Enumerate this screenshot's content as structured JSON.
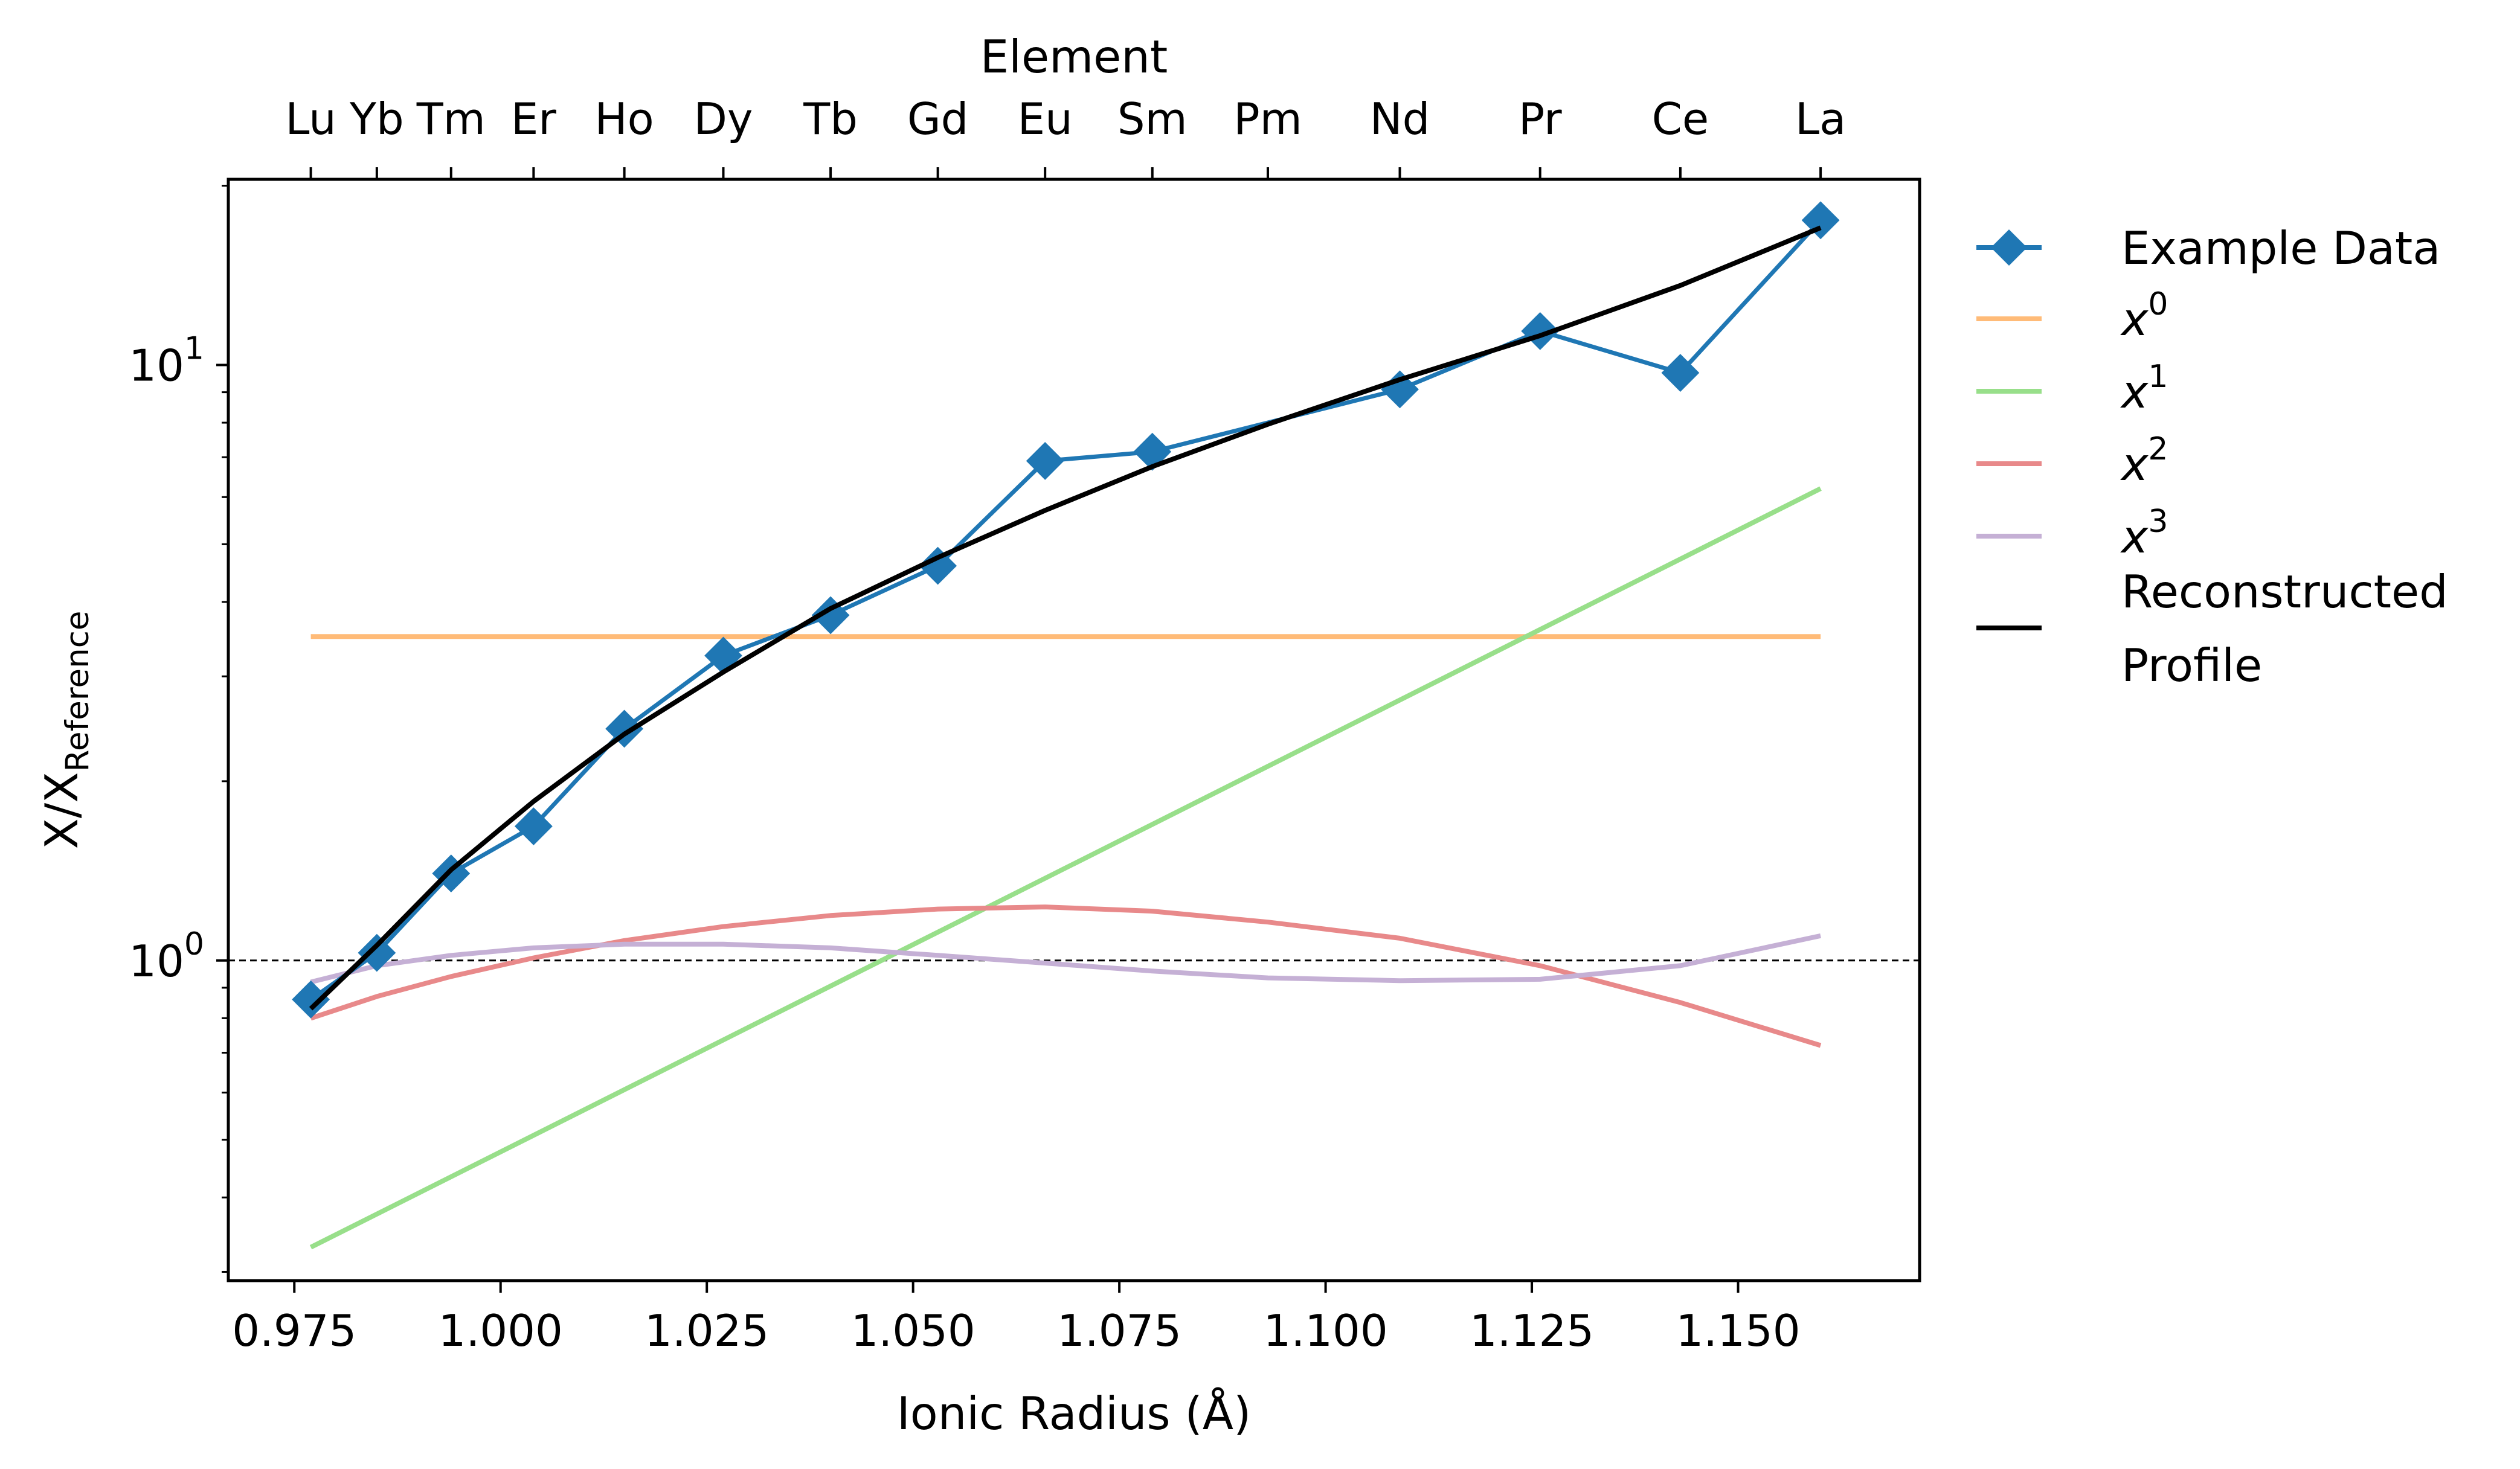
{
  "chart_data": {
    "type": "line",
    "xlabel": "Ionic Radius (Å)",
    "top_xlabel": "Element",
    "ylabel": {
      "main": "X/X",
      "subscript": "Reference"
    },
    "x_scale": "linear",
    "y_scale": "log",
    "xlim": [
      0.967,
      1.172
    ],
    "ylim": [
      0.29,
      20.5
    ],
    "x_ticks": [
      {
        "value": 0.975,
        "label": "0.975"
      },
      {
        "value": 1.0,
        "label": "1.000"
      },
      {
        "value": 1.025,
        "label": "1.025"
      },
      {
        "value": 1.05,
        "label": "1.050"
      },
      {
        "value": 1.075,
        "label": "1.075"
      },
      {
        "value": 1.1,
        "label": "1.100"
      },
      {
        "value": 1.125,
        "label": "1.125"
      },
      {
        "value": 1.15,
        "label": "1.150"
      }
    ],
    "y_ticks": [
      {
        "value": 1,
        "base": "10",
        "exp": "0"
      },
      {
        "value": 10,
        "base": "10",
        "exp": "1"
      }
    ],
    "y_minor_ticks": [
      0.3,
      0.4,
      0.5,
      0.6,
      0.7,
      0.8,
      0.9,
      2,
      3,
      4,
      5,
      6,
      7,
      8,
      9,
      20
    ],
    "elements": [
      {
        "symbol": "Lu",
        "radius": 0.977
      },
      {
        "symbol": "Yb",
        "radius": 0.985
      },
      {
        "symbol": "Tm",
        "radius": 0.994
      },
      {
        "symbol": "Er",
        "radius": 1.004
      },
      {
        "symbol": "Ho",
        "radius": 1.015
      },
      {
        "symbol": "Dy",
        "radius": 1.027
      },
      {
        "symbol": "Tb",
        "radius": 1.04
      },
      {
        "symbol": "Gd",
        "radius": 1.053
      },
      {
        "symbol": "Eu",
        "radius": 1.066
      },
      {
        "symbol": "Sm",
        "radius": 1.079
      },
      {
        "symbol": "Pm",
        "radius": 1.093
      },
      {
        "symbol": "Nd",
        "radius": 1.109
      },
      {
        "symbol": "Pr",
        "radius": 1.126
      },
      {
        "symbol": "Ce",
        "radius": 1.143
      },
      {
        "symbol": "La",
        "radius": 1.16
      }
    ],
    "reference_line": {
      "y": 1.0,
      "style": "dashed",
      "color": "#000000"
    },
    "series": [
      {
        "name": "Example Data",
        "color": "#1f77b4",
        "marker": "diamond",
        "points": [
          [
            0.977,
            0.86
          ],
          [
            0.985,
            1.03
          ],
          [
            0.994,
            1.4
          ],
          [
            1.004,
            1.68
          ],
          [
            1.015,
            2.45
          ],
          [
            1.027,
            3.25
          ],
          [
            1.04,
            3.8
          ],
          [
            1.053,
            4.6
          ],
          [
            1.066,
            6.9
          ],
          [
            1.079,
            7.15
          ],
          [
            1.109,
            9.1
          ],
          [
            1.126,
            11.4
          ],
          [
            1.143,
            9.7
          ],
          [
            1.16,
            17.5
          ]
        ]
      },
      {
        "name": "x",
        "sup": "0",
        "color": "#ffbb78",
        "points": [
          [
            0.977,
            3.5
          ],
          [
            1.16,
            3.5
          ]
        ]
      },
      {
        "name": "x",
        "sup": "1",
        "color": "#98df8a",
        "points": [
          [
            0.977,
            0.33
          ],
          [
            1.16,
            6.2
          ]
        ]
      },
      {
        "name": "x",
        "sup": "2",
        "color": "#e8898a",
        "points": [
          [
            0.977,
            0.8
          ],
          [
            0.985,
            0.87
          ],
          [
            0.994,
            0.94
          ],
          [
            1.004,
            1.01
          ],
          [
            1.015,
            1.08
          ],
          [
            1.027,
            1.14
          ],
          [
            1.04,
            1.19
          ],
          [
            1.053,
            1.22
          ],
          [
            1.066,
            1.23
          ],
          [
            1.079,
            1.21
          ],
          [
            1.093,
            1.16
          ],
          [
            1.109,
            1.09
          ],
          [
            1.126,
            0.98
          ],
          [
            1.143,
            0.85
          ],
          [
            1.16,
            0.72
          ]
        ]
      },
      {
        "name": "x",
        "sup": "3",
        "color": "#c5b0d5",
        "points": [
          [
            0.977,
            0.92
          ],
          [
            0.985,
            0.98
          ],
          [
            0.994,
            1.02
          ],
          [
            1.004,
            1.05
          ],
          [
            1.015,
            1.065
          ],
          [
            1.027,
            1.065
          ],
          [
            1.04,
            1.05
          ],
          [
            1.053,
            1.02
          ],
          [
            1.066,
            0.99
          ],
          [
            1.079,
            0.96
          ],
          [
            1.093,
            0.935
          ],
          [
            1.109,
            0.925
          ],
          [
            1.126,
            0.93
          ],
          [
            1.143,
            0.98
          ],
          [
            1.16,
            1.1
          ]
        ]
      },
      {
        "name": "Reconstructed",
        "name_line2": "Profile",
        "color": "#000000",
        "points": [
          [
            0.977,
            0.83
          ],
          [
            0.985,
            1.06
          ],
          [
            0.994,
            1.42
          ],
          [
            1.004,
            1.85
          ],
          [
            1.015,
            2.4
          ],
          [
            1.027,
            3.05
          ],
          [
            1.04,
            3.9
          ],
          [
            1.053,
            4.75
          ],
          [
            1.066,
            5.7
          ],
          [
            1.079,
            6.75
          ],
          [
            1.093,
            7.95
          ],
          [
            1.109,
            9.45
          ],
          [
            1.126,
            11.2
          ],
          [
            1.143,
            13.6
          ],
          [
            1.16,
            17.0
          ]
        ]
      }
    ],
    "grid": false,
    "legend_position": "outside-right"
  }
}
